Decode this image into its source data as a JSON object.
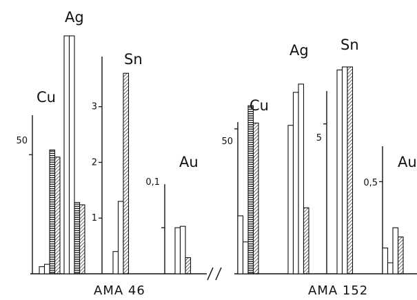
{
  "chart_data": {
    "type": "bar",
    "grid": false,
    "patterns": [
      "open",
      "vertical-lines",
      "horizontal-lines",
      "diagonal-hatch"
    ],
    "samples": [
      {
        "name": "AMA 46",
        "panels": [
          {
            "element": "Cu",
            "tick_label": "50",
            "tick_value": 50,
            "ylim": [
              0,
              86
            ],
            "bars": [
              {
                "pattern": "open",
                "value": 3
              },
              {
                "pattern": "open",
                "value": 4
              },
              {
                "pattern": "horizontal-lines",
                "value": 52
              },
              {
                "pattern": "diagonal-hatch",
                "value": 49
              }
            ]
          },
          {
            "element": "Ag",
            "tick_label": "",
            "tick_value": null,
            "ylim": [
              0,
              100
            ],
            "bars": [
              {
                "pattern": "open",
                "value": 100
              },
              {
                "pattern": "open",
                "value": 100
              },
              {
                "pattern": "horizontal-lines",
                "value": 30
              },
              {
                "pattern": "diagonal-hatch",
                "value": 29
              }
            ]
          },
          {
            "element": "Sn",
            "tick_label": [
              "1",
              "2",
              "3"
            ],
            "tick_value": [
              1,
              2,
              3
            ],
            "ylim": [
              0,
              3.9
            ],
            "bars": [
              {
                "pattern": "open",
                "value": 0.4
              },
              {
                "pattern": "open",
                "value": 1.3
              },
              {
                "pattern": "diagonal-hatch",
                "value": 3.6
              }
            ]
          },
          {
            "element": "Au",
            "tick_label": "0,1",
            "tick_value": 0.1,
            "ylim": [
              0,
              0.19
            ],
            "bars": [
              {
                "pattern": "open",
                "value": 0.1
              },
              {
                "pattern": "open",
                "value": 0.103
              },
              {
                "pattern": "diagonal-hatch",
                "value": 0.035
              }
            ]
          }
        ]
      },
      {
        "name": "AMA 152",
        "panels": [
          {
            "element": "Cu",
            "tick_label": "50",
            "tick_value": 50,
            "ylim": [
              0,
              64
            ],
            "bars": [
              {
                "pattern": "open",
                "value": 20
              },
              {
                "pattern": "open",
                "value": 11
              },
              {
                "pattern": "horizontal-lines",
                "value": 58
              },
              {
                "pattern": "diagonal-hatch",
                "value": 52
              }
            ]
          },
          {
            "element": "Ag",
            "tick_label": "",
            "tick_value": null,
            "ylim": [
              0,
              100
            ],
            "bars": [
              {
                "pattern": "open",
                "value": 72
              },
              {
                "pattern": "open",
                "value": 88
              },
              {
                "pattern": "open",
                "value": 92
              },
              {
                "pattern": "diagonal-hatch",
                "value": 32
              }
            ]
          },
          {
            "element": "Sn",
            "tick_label": "5",
            "tick_value": 5,
            "ylim": [
              0,
              7.2
            ],
            "bars": [
              {
                "pattern": "open",
                "value": 6.8
              },
              {
                "pattern": "open",
                "value": 6.9
              },
              {
                "pattern": "diagonal-hatch",
                "value": 6.9
              }
            ]
          },
          {
            "element": "Au",
            "tick_label": "0,5",
            "tick_value": 0.5,
            "ylim": [
              0,
              0.7
            ],
            "bars": [
              {
                "pattern": "open",
                "value": 0.14
              },
              {
                "pattern": "open",
                "value": 0.06
              },
              {
                "pattern": "open",
                "value": 0.25
              },
              {
                "pattern": "diagonal-hatch",
                "value": 0.2
              }
            ]
          }
        ]
      }
    ]
  }
}
